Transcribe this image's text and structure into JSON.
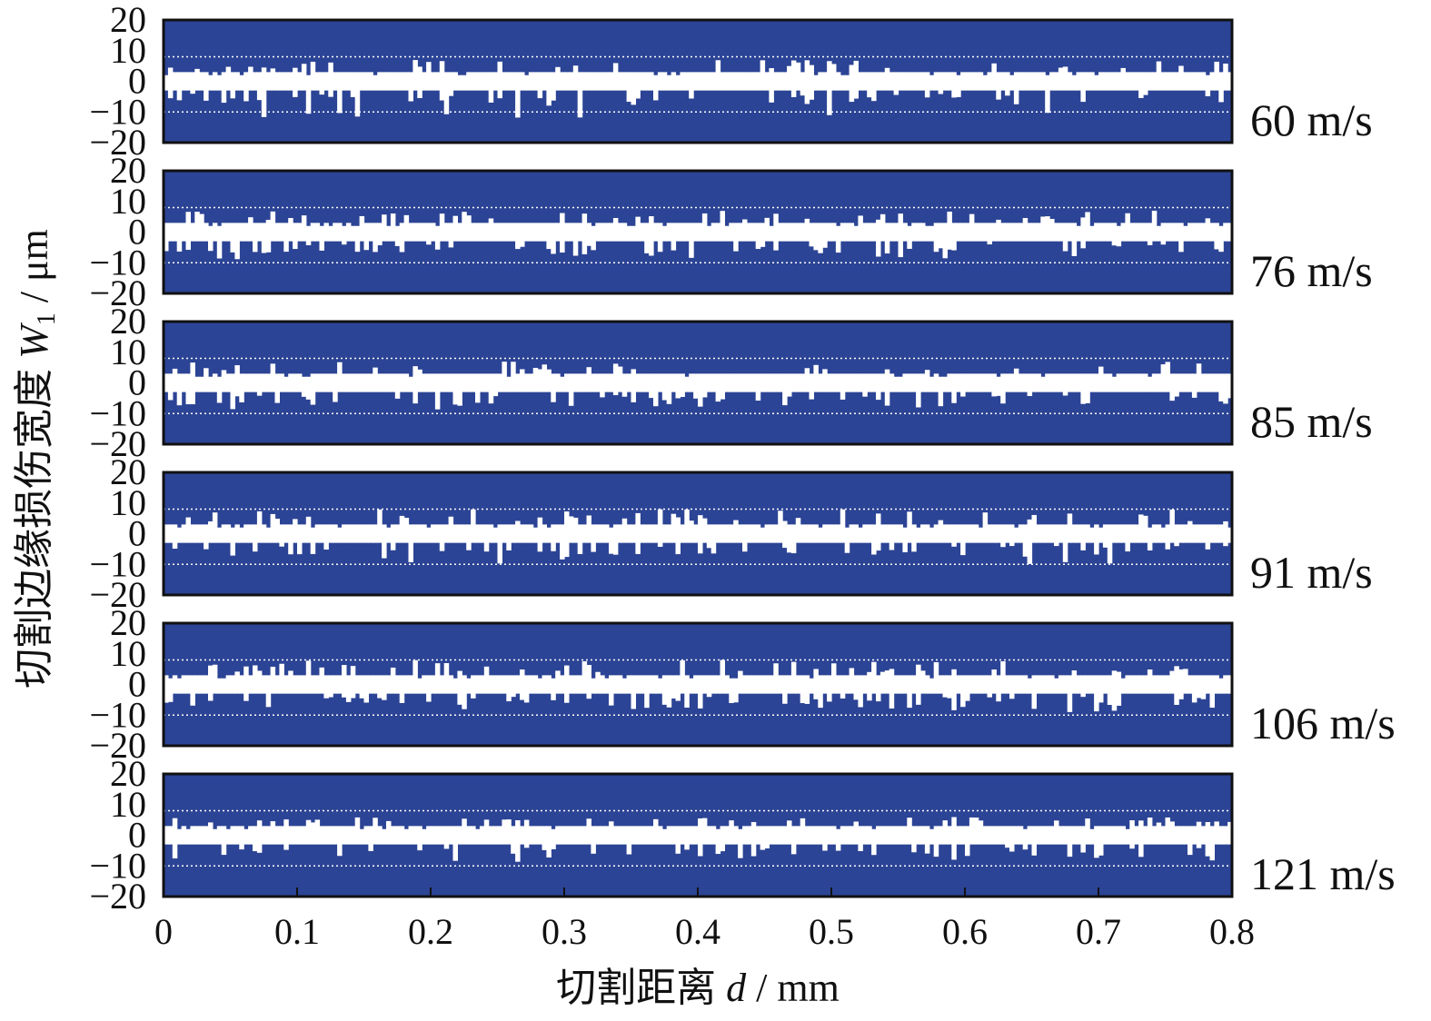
{
  "colors": {
    "panel_fill": "#2c4495",
    "damage": "#ffffff",
    "frame": "#111111",
    "guide": "#ffffff"
  },
  "chart_data": {
    "type": "area",
    "xlabel": {
      "prefix": "切割距离 ",
      "var": "d",
      "suffix": " / mm"
    },
    "ylabel": {
      "prefix": "切割边缘损伤宽度 ",
      "var": "W",
      "sub": "1",
      "suffix": " / μm"
    },
    "xlim": [
      0,
      0.8
    ],
    "ylim": [
      -20,
      20
    ],
    "x_ticks": [
      "0",
      "0.1",
      "0.2",
      "0.3",
      "0.4",
      "0.5",
      "0.6",
      "0.7",
      "0.8"
    ],
    "y_ticks": [
      "20",
      "10",
      "0",
      "−10",
      "−20"
    ],
    "guide_lines_um": [
      8,
      -10
    ],
    "series": [
      {
        "name": "60 m/s",
        "mean_half_width_um": 3,
        "max_upper_um": 7,
        "min_lower_um": -12
      },
      {
        "name": "76 m/s",
        "mean_half_width_um": 3,
        "max_upper_um": 7,
        "min_lower_um": -9
      },
      {
        "name": "85 m/s",
        "mean_half_width_um": 3,
        "max_upper_um": 7,
        "min_lower_um": -9
      },
      {
        "name": "91 m/s",
        "mean_half_width_um": 3,
        "max_upper_um": 8,
        "min_lower_um": -10
      },
      {
        "name": "106 m/s",
        "mean_half_width_um": 3,
        "max_upper_um": 8,
        "min_lower_um": -9
      },
      {
        "name": "121 m/s",
        "mean_half_width_um": 3,
        "max_upper_um": 6,
        "min_lower_um": -9
      }
    ]
  }
}
